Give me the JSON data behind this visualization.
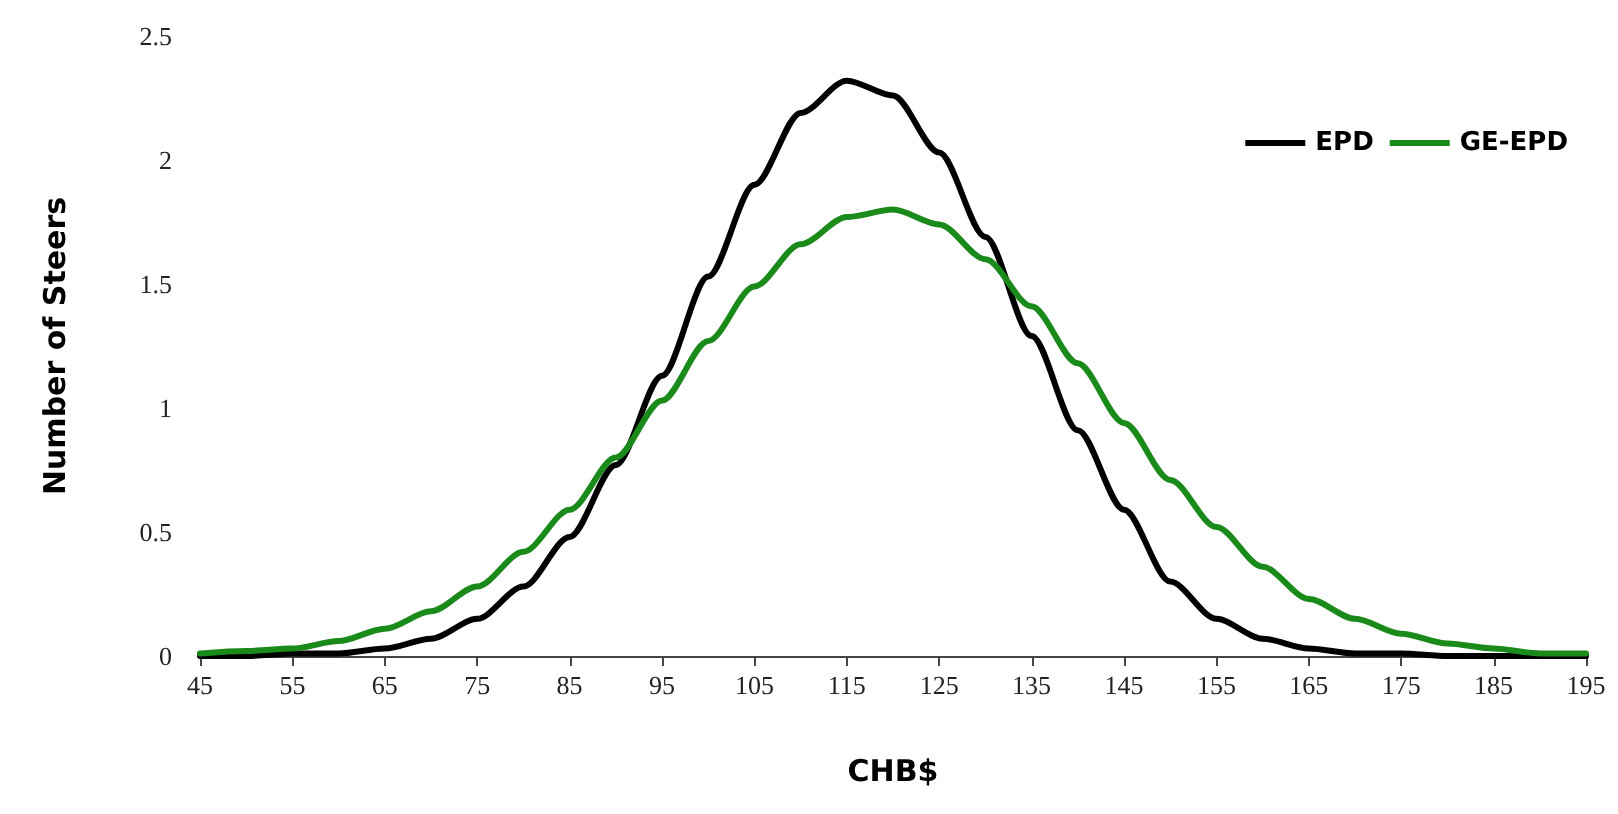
{
  "chart_data": {
    "type": "line",
    "xlabel": "CHB$",
    "ylabel": "Number of Steers",
    "x": [
      45,
      50,
      55,
      60,
      65,
      70,
      75,
      80,
      85,
      90,
      95,
      100,
      105,
      110,
      115,
      120,
      125,
      130,
      135,
      140,
      145,
      150,
      155,
      160,
      165,
      170,
      175,
      180,
      185,
      190,
      195
    ],
    "series": [
      {
        "name": "EPD",
        "color": "#000000",
        "values": [
          0,
          0,
          0.01,
          0.01,
          0.03,
          0.07,
          0.15,
          0.28,
          0.48,
          0.77,
          1.13,
          1.53,
          1.9,
          2.19,
          2.32,
          2.26,
          2.03,
          1.69,
          1.29,
          0.91,
          0.59,
          0.3,
          0.15,
          0.07,
          0.03,
          0.01,
          0.01,
          0,
          0,
          0,
          0
        ]
      },
      {
        "name": "GE-EPD",
        "color": "#1a8a1a",
        "values": [
          0.01,
          0.02,
          0.03,
          0.06,
          0.11,
          0.18,
          0.28,
          0.42,
          0.59,
          0.8,
          1.03,
          1.27,
          1.49,
          1.66,
          1.77,
          1.8,
          1.74,
          1.6,
          1.41,
          1.18,
          0.94,
          0.71,
          0.52,
          0.36,
          0.23,
          0.15,
          0.09,
          0.05,
          0.03,
          0.01,
          0.01
        ]
      }
    ],
    "xlim": [
      45,
      195
    ],
    "xticks": [
      45,
      55,
      65,
      75,
      85,
      95,
      105,
      115,
      125,
      135,
      145,
      155,
      165,
      175,
      185,
      195
    ],
    "ylim": [
      0,
      2.5
    ],
    "yticks": [
      0,
      0.5,
      1,
      1.5,
      2,
      2.5
    ],
    "grid": false,
    "legend": "top right",
    "marker": "none",
    "line_style": "solid"
  }
}
